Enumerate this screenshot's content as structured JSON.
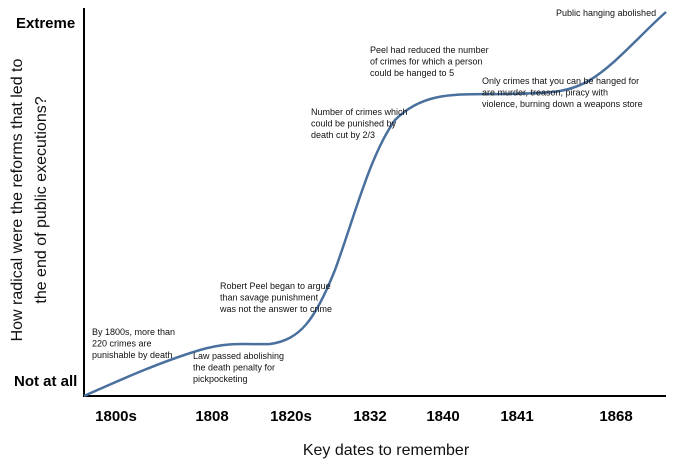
{
  "y_axis": {
    "top_label": "Extreme",
    "bottom_label": "Not at all",
    "title_lines": [
      "How radical were the reforms that led to",
      "the end of public executions?"
    ]
  },
  "x_axis": {
    "title": "Key dates to remember",
    "labels": [
      "1800s",
      "1808",
      "1820s",
      "1832",
      "1840",
      "1841",
      "1868"
    ]
  },
  "annotations": [
    [
      "By 1800s, more than",
      "220 crimes are",
      "punishable by death"
    ],
    [
      "Law passed abolishing",
      "the death penalty for",
      "pickpocketing"
    ],
    [
      "Robert Peel began to argue",
      "than savage punishment",
      "was not the answer to crime"
    ],
    [
      "Number of crimes which",
      "could be punished by",
      "death cut by 2/3"
    ],
    [
      "Peel had reduced the number",
      "of crimes for which a person",
      "could be hanged to 5"
    ],
    [
      "Only crimes that you can be hanged for",
      "are murder, treason, piracy with",
      "violence, burning down a weapons store"
    ],
    [
      "Public hanging abolished"
    ]
  ]
}
